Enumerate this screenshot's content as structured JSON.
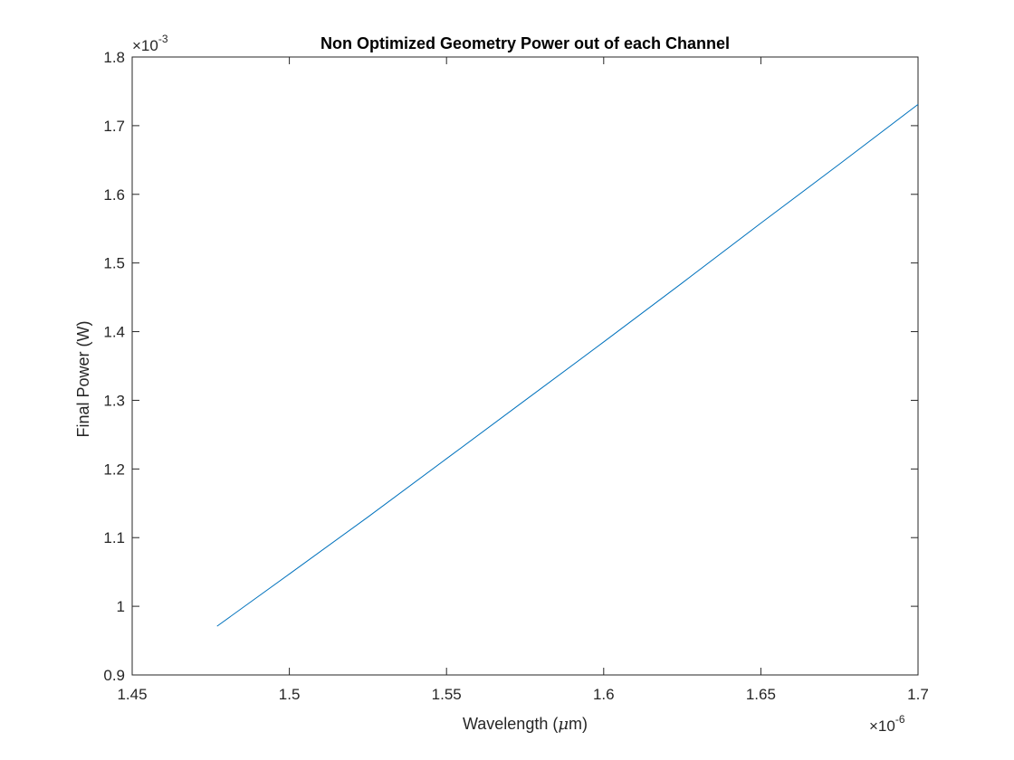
{
  "chart_data": {
    "type": "line",
    "title": "Non Optimized Geometry Power out of each Channel",
    "xlabel_main": "Wavelength (",
    "xlabel_mu": "μ",
    "xlabel_end": "m)",
    "ylabel": "Final Power (W)",
    "x_multiplier": {
      "base": "×10",
      "exponent": "-6"
    },
    "y_multiplier": {
      "base": "×10",
      "exponent": "-3"
    },
    "xlim": [
      1.45,
      1.7
    ],
    "ylim": [
      0.9,
      1.8
    ],
    "xticks": [
      1.45,
      1.5,
      1.55,
      1.6,
      1.65,
      1.7
    ],
    "xtick_labels": [
      "1.45",
      "1.5",
      "1.55",
      "1.6",
      "1.65",
      "1.7"
    ],
    "yticks": [
      0.9,
      1.0,
      1.1,
      1.2,
      1.3,
      1.4,
      1.5,
      1.6,
      1.7,
      1.8
    ],
    "ytick_labels": [
      "0.9",
      "1",
      "1.1",
      "1.2",
      "1.3",
      "1.4",
      "1.5",
      "1.6",
      "1.7",
      "1.8"
    ],
    "grid": false,
    "box": true,
    "series": [
      {
        "color": "#0072BD",
        "x": [
          1.477,
          1.5,
          1.525,
          1.55,
          1.575,
          1.6,
          1.625,
          1.65,
          1.675,
          1.7
        ],
        "y": [
          0.971,
          1.047,
          1.13,
          1.215,
          1.3,
          1.385,
          1.471,
          1.558,
          1.644,
          1.731
        ]
      }
    ]
  }
}
